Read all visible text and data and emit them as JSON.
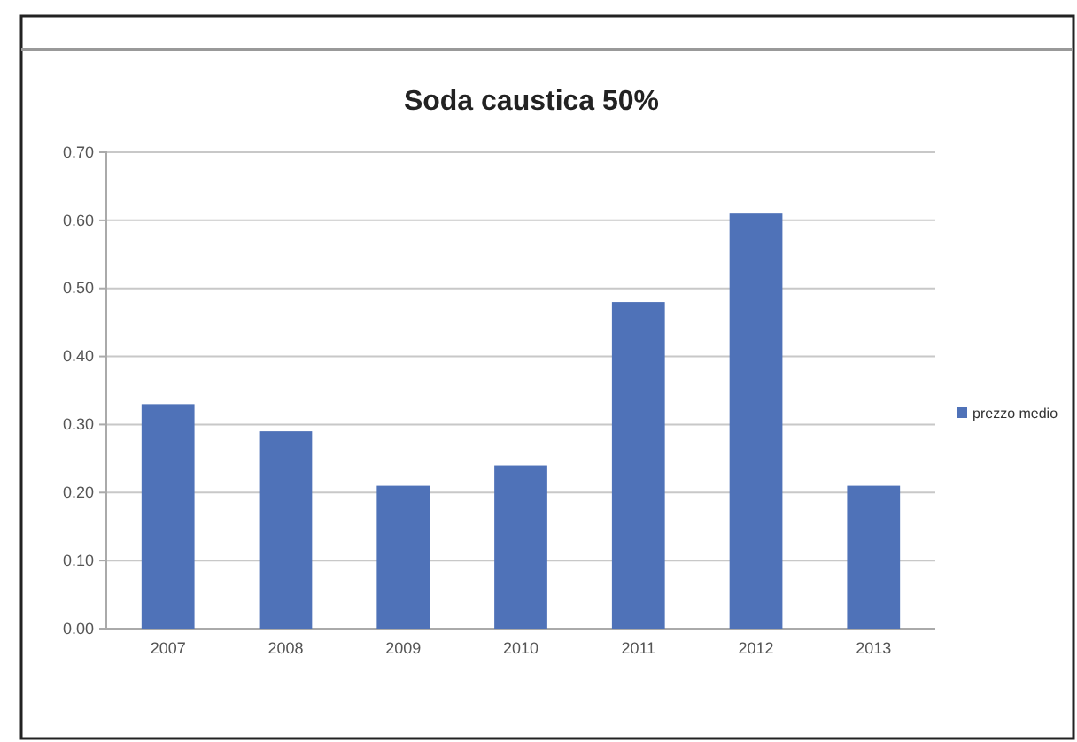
{
  "chart_data": {
    "type": "bar",
    "title": "Soda caustica 50%",
    "categories": [
      "2007",
      "2008",
      "2009",
      "2010",
      "2011",
      "2012",
      "2013"
    ],
    "series": [
      {
        "name": "prezzo medio",
        "color": "#4f72b8",
        "values": [
          0.33,
          0.29,
          0.21,
          0.24,
          0.48,
          0.61,
          0.21
        ]
      }
    ],
    "ylim": [
      0,
      0.7
    ],
    "yticks": [
      {
        "value": 0,
        "label": "0.00"
      },
      {
        "value": 0.1,
        "label": "0.10"
      },
      {
        "value": 0.2,
        "label": "0.20"
      },
      {
        "value": 0.3,
        "label": "0.30"
      },
      {
        "value": 0.4,
        "label": "0.40"
      },
      {
        "value": 0.5,
        "label": "0.50"
      },
      {
        "value": 0.6,
        "label": "0.60"
      },
      {
        "value": 0.7,
        "label": "0.70"
      }
    ],
    "grid": "y",
    "legend": "right"
  }
}
